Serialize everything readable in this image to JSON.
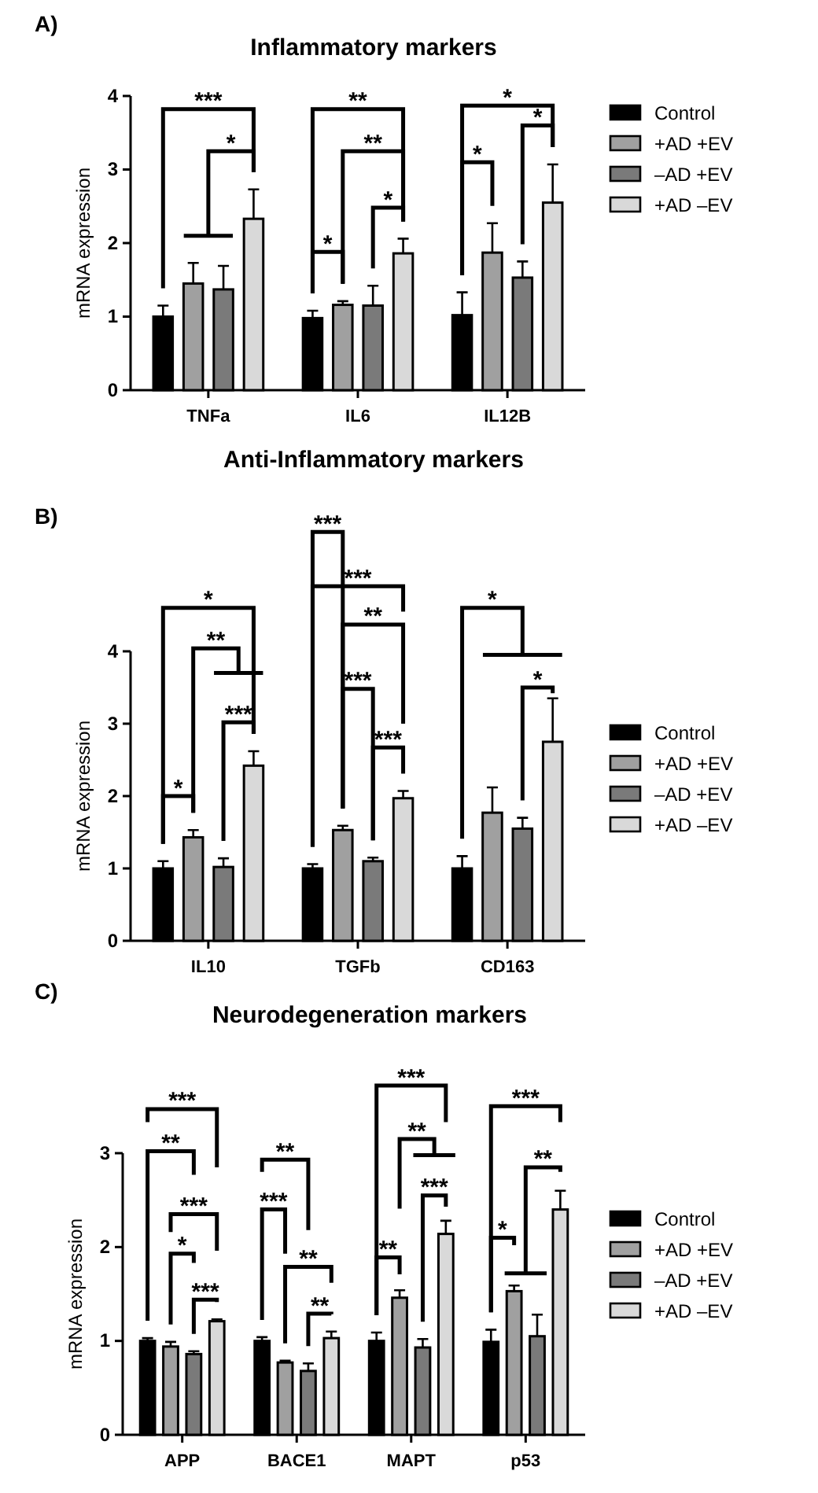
{
  "chart_data": [
    {
      "type": "bar",
      "title": "Inflammatory markers",
      "ylabel": "mRNA expression",
      "categories": [
        "TNFa",
        "IL6",
        "IL12B"
      ],
      "ylim": [
        0,
        4
      ],
      "yticks": [
        0,
        1,
        2,
        3,
        4
      ],
      "legend": "right",
      "annotations": [
        "A)",
        "***",
        "*",
        "**",
        "**",
        "*",
        "*",
        "*",
        "*",
        "*"
      ],
      "series": [
        {
          "name": "Control",
          "color": "#000000",
          "values": [
            1.0,
            0.98,
            1.02
          ],
          "errors": [
            0.15,
            0.1,
            0.31
          ]
        },
        {
          "name": "+AD +EV",
          "color": "#a0a0a0",
          "values": [
            1.45,
            1.16,
            1.87
          ],
          "errors": [
            0.28,
            0.05,
            0.4
          ]
        },
        {
          "name": "–AD +EV",
          "color": "#7a7a7a",
          "values": [
            1.37,
            1.15,
            1.53
          ],
          "errors": [
            0.32,
            0.27,
            0.22
          ]
        },
        {
          "name": "+AD –EV",
          "color": "#d9d9d9",
          "values": [
            2.33,
            1.86,
            2.55
          ],
          "errors": [
            0.4,
            0.2,
            0.52
          ]
        }
      ]
    },
    {
      "type": "bar",
      "title": "Anti-Inflammatory markers",
      "ylabel": "mRNA expression",
      "categories": [
        "IL10",
        "TGFb",
        "CD163"
      ],
      "ylim": [
        0,
        4
      ],
      "yticks": [
        0,
        1,
        2,
        3,
        4
      ],
      "legend": "right",
      "annotations": [
        "B)",
        "*",
        "**",
        "*",
        "***",
        "***",
        "***",
        "**",
        "***",
        "***",
        "*",
        "*"
      ],
      "series": [
        {
          "name": "Control",
          "color": "#000000",
          "values": [
            1.0,
            1.0,
            1.0
          ],
          "errors": [
            0.1,
            0.06,
            0.17
          ]
        },
        {
          "name": "+AD +EV",
          "color": "#a0a0a0",
          "values": [
            1.43,
            1.53,
            1.77
          ],
          "errors": [
            0.1,
            0.06,
            0.35
          ]
        },
        {
          "name": "–AD +EV",
          "color": "#7a7a7a",
          "values": [
            1.02,
            1.1,
            1.55
          ],
          "errors": [
            0.12,
            0.05,
            0.15
          ]
        },
        {
          "name": "+AD –EV",
          "color": "#d9d9d9",
          "values": [
            2.42,
            1.97,
            2.75
          ],
          "errors": [
            0.2,
            0.1,
            0.6
          ]
        }
      ]
    },
    {
      "type": "bar",
      "title": "Neurodegeneration markers",
      "ylabel": "mRNA expression",
      "categories": [
        "APP",
        "BACE1",
        "MAPT",
        "p53"
      ],
      "ylim": [
        0,
        3
      ],
      "yticks": [
        0,
        1,
        2,
        3
      ],
      "legend": "right",
      "annotations": [
        "C)",
        "***",
        "**",
        "***",
        "*",
        "***",
        "**",
        "***",
        "**",
        "**",
        "***",
        "**",
        "***",
        "**",
        "***",
        "**",
        "*"
      ],
      "series": [
        {
          "name": "Control",
          "color": "#000000",
          "values": [
            1.0,
            1.0,
            1.0,
            0.99
          ],
          "errors": [
            0.03,
            0.04,
            0.09,
            0.13
          ]
        },
        {
          "name": "+AD +EV",
          "color": "#a0a0a0",
          "values": [
            0.94,
            0.77,
            1.46,
            1.53
          ],
          "errors": [
            0.05,
            0.02,
            0.08,
            0.06
          ]
        },
        {
          "name": "–AD +EV",
          "color": "#7a7a7a",
          "values": [
            0.86,
            0.68,
            0.93,
            1.05
          ],
          "errors": [
            0.03,
            0.08,
            0.09,
            0.23
          ]
        },
        {
          "name": "+AD –EV",
          "color": "#d9d9d9",
          "values": [
            1.21,
            1.03,
            2.14,
            2.4
          ],
          "errors": [
            0.02,
            0.07,
            0.14,
            0.2
          ]
        }
      ]
    }
  ]
}
